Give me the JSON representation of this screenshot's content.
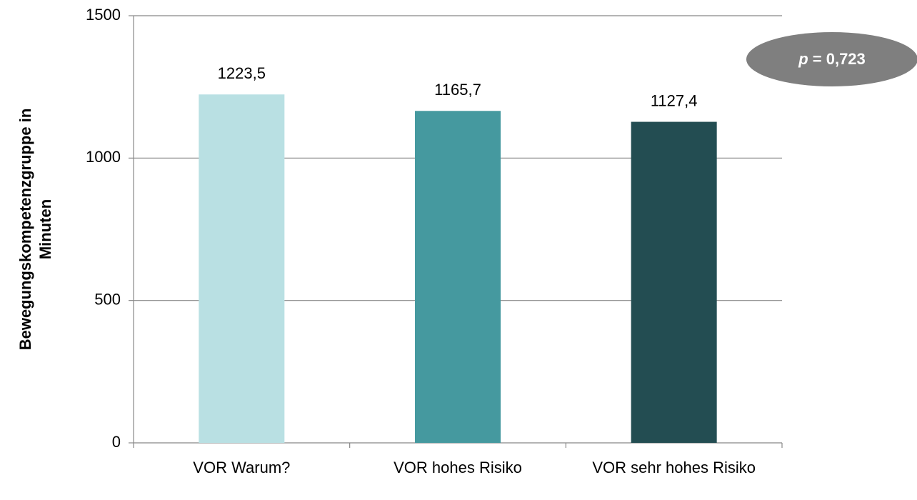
{
  "chart_data": {
    "type": "bar",
    "ylabel": [
      "Bewegungskompetenzgruppe in",
      "Minuten"
    ],
    "categories": [
      "VOR Warum?",
      "VOR hohes Risiko",
      "VOR sehr hohes Risiko"
    ],
    "values": [
      1223.5,
      1165.7,
      1127.4
    ],
    "value_labels": [
      "1223,5",
      "1165,7",
      "1127,4"
    ],
    "colors": [
      "#b9e0e3",
      "#45999f",
      "#234d52"
    ],
    "ylim": [
      0,
      1500
    ],
    "yticks": [
      0,
      500,
      1000,
      1500
    ],
    "grid": true,
    "annotation": "p = 0,723"
  }
}
